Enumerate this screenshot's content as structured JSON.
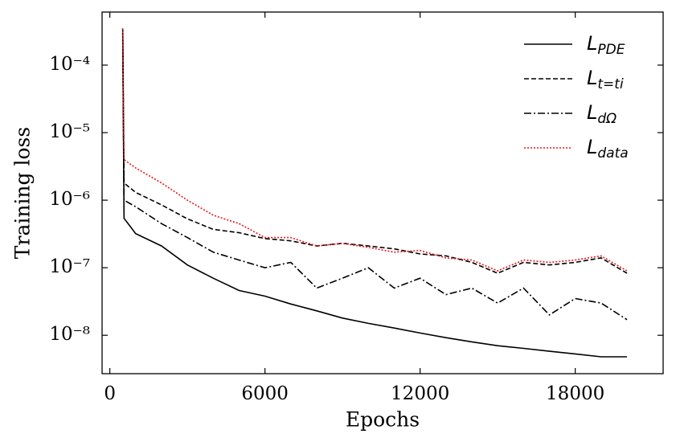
{
  "chart_data": {
    "type": "line",
    "x_label": "Epochs",
    "y_label": "Training loss",
    "log_y": true,
    "legend": "upper right",
    "x": [
      500,
      550,
      1000,
      2000,
      3000,
      4000,
      5000,
      6000,
      7000,
      8000,
      9000,
      10000,
      11000,
      12000,
      13000,
      14000,
      15000,
      16000,
      17000,
      18000,
      19000,
      20000
    ],
    "series": [
      {
        "name": "LPDE",
        "color": "#000000",
        "linestyle": "solid",
        "values": [
          0.00035,
          5.4e-07,
          3.2e-07,
          2.1e-07,
          1.1e-07,
          7e-08,
          4.6e-08,
          3.8e-08,
          2.9e-08,
          2.3e-08,
          1.8e-08,
          1.5e-08,
          1.28e-08,
          1.08e-08,
          9.2e-09,
          8e-09,
          7e-09,
          6.4e-09,
          5.8e-09,
          5.3e-09,
          4.8e-09,
          4.8e-09
        ]
      },
      {
        "name": "Lt=ti",
        "color": "#000000",
        "linestyle": "dashed",
        "values": [
          0.0003,
          1.8e-06,
          1.3e-06,
          8.5e-07,
          5.3e-07,
          3.7e-07,
          3.3e-07,
          2.7e-07,
          2.5e-07,
          2.1e-07,
          2.3e-07,
          2.1e-07,
          1.9e-07,
          1.6e-07,
          1.5e-07,
          1.2e-07,
          8.3e-08,
          1.2e-07,
          1.1e-07,
          1.2e-07,
          1.4e-07,
          8.3e-08
        ]
      },
      {
        "name": "LdΩ",
        "color": "#000000",
        "linestyle": "dashdot",
        "values": [
          0.00025,
          1e-06,
          8e-07,
          4.5e-07,
          2.8e-07,
          1.7e-07,
          1.3e-07,
          1e-07,
          1.2e-07,
          5e-08,
          7e-08,
          1e-07,
          5e-08,
          7e-08,
          4e-08,
          5e-08,
          3e-08,
          5e-08,
          2e-08,
          3.5e-08,
          3e-08,
          1.7e-08
        ]
      },
      {
        "name": "Ldata",
        "color": "#e8161b",
        "linestyle": "dotted",
        "values": [
          0.00035,
          4e-06,
          3e-06,
          1.8e-06,
          1e-06,
          6e-07,
          4.5e-07,
          2.8e-07,
          2.8e-07,
          2.1e-07,
          2.3e-07,
          2e-07,
          1.7e-07,
          1.8e-07,
          1.4e-07,
          1.3e-07,
          9e-08,
          1.3e-07,
          1.2e-07,
          1.3e-07,
          1.5e-07,
          9e-08
        ]
      }
    ],
    "xlim": [
      -300,
      21400
    ],
    "xticks": [
      0,
      6000,
      12000,
      18000
    ],
    "ylim": [
      2.7e-09,
      0.00061
    ],
    "yticks": [
      {
        "value": 1e-08,
        "label": "10⁻⁸"
      },
      {
        "value": 1e-07,
        "label": "10⁻⁷"
      },
      {
        "value": 1e-06,
        "label": "10⁻⁶"
      },
      {
        "value": 1e-05,
        "label": "10⁻⁵"
      },
      {
        "value": 0.0001,
        "label": "10⁻⁴"
      }
    ]
  }
}
